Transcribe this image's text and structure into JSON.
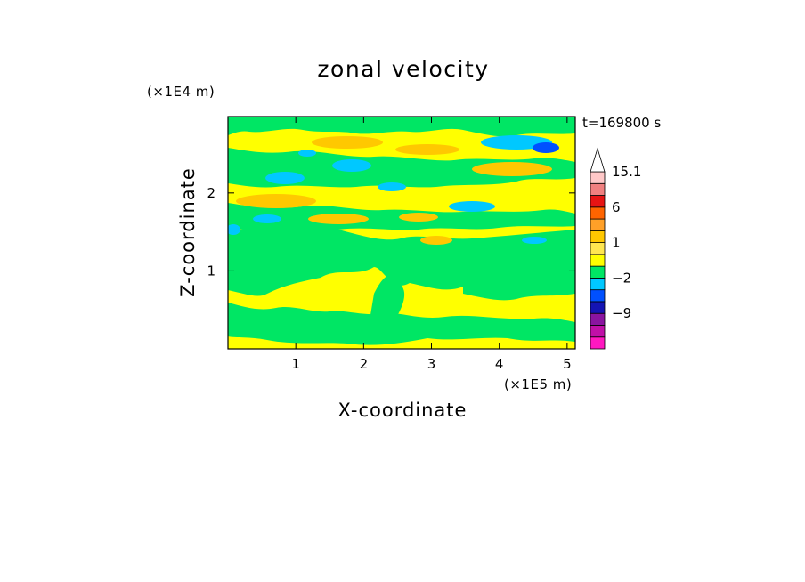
{
  "chart_data": {
    "type": "heatmap",
    "title": "zonal velocity",
    "xlabel": "X-coordinate",
    "ylabel": "Z-coordinate",
    "x_multiplier": "(×1E5 m)",
    "y_multiplier": "(×1E4 m)",
    "time_label": "t=169800 s",
    "xlim": [
      0,
      5.12
    ],
    "ylim": [
      0,
      2.98
    ],
    "x_ticks": [
      "1",
      "2",
      "3",
      "4",
      "5"
    ],
    "x_tick_values": [
      1,
      2,
      3,
      4,
      5
    ],
    "y_ticks": [
      "1",
      "2"
    ],
    "y_tick_values": [
      1,
      2
    ],
    "colorbar": {
      "labels": [
        "15.1",
        "6",
        "1",
        "−2",
        "−9"
      ],
      "label_levels": [
        15.1,
        6,
        1,
        -2,
        -9
      ],
      "levels": [
        -15,
        -12,
        -9,
        -6,
        -3,
        -2,
        -1,
        0,
        1,
        2,
        3,
        6,
        9,
        12,
        15.1
      ],
      "colors": [
        "#ff18c0",
        "#c010a8",
        "#8a14a0",
        "#1414b4",
        "#0050ff",
        "#00c8ff",
        "#00e664",
        "#ffff00",
        "#ffe650",
        "#ffc800",
        "#ffa028",
        "#ff6400",
        "#e61414",
        "#f08080",
        "#ffc8c8"
      ],
      "extend": "max"
    },
    "field_regions": [
      {
        "level": "0 to 1",
        "color": "#ffff00",
        "description": "background, widespread"
      },
      {
        "level": "-1 to 0",
        "color": "#00e664",
        "description": "large patches, lower and upper layers"
      },
      {
        "level": "2 to 3",
        "color": "#ffc800",
        "description": "bands near z=2.0-2.7"
      },
      {
        "level": "-3 to -2",
        "color": "#00c8ff",
        "description": "cells near z=2.2-2.6"
      },
      {
        "level": "-6 to -3",
        "color": "#0050ff",
        "description": "cell near x=4.6, z=2.6"
      }
    ]
  }
}
